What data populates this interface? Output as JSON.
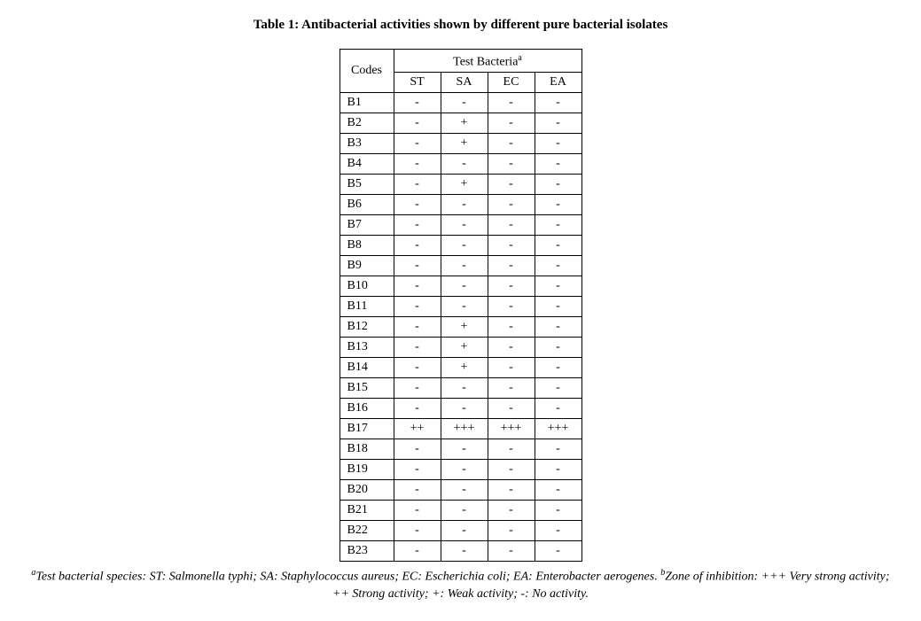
{
  "title": "Table 1: Antibacterial activities shown by different pure bacterial isolates",
  "table": {
    "codes_header": "Codes",
    "test_header": "Test Bacteria",
    "test_header_sup": "a",
    "columns": [
      "ST",
      "SA",
      "EC",
      "EA"
    ],
    "rows": [
      {
        "code": "B1",
        "values": [
          "-",
          "-",
          "-",
          "-"
        ]
      },
      {
        "code": "B2",
        "values": [
          "-",
          "+",
          "-",
          "-"
        ]
      },
      {
        "code": "B3",
        "values": [
          "-",
          "+",
          "-",
          "-"
        ]
      },
      {
        "code": "B4",
        "values": [
          "-",
          "-",
          "-",
          "-"
        ]
      },
      {
        "code": "B5",
        "values": [
          "-",
          "+",
          "-",
          "-"
        ]
      },
      {
        "code": "B6",
        "values": [
          "-",
          "-",
          "-",
          "-"
        ]
      },
      {
        "code": "B7",
        "values": [
          "-",
          "-",
          "-",
          "-"
        ]
      },
      {
        "code": "B8",
        "values": [
          "-",
          "-",
          "-",
          "-"
        ]
      },
      {
        "code": "B9",
        "values": [
          "-",
          "-",
          "-",
          "-"
        ]
      },
      {
        "code": "B10",
        "values": [
          "-",
          "-",
          "-",
          "-"
        ]
      },
      {
        "code": "B11",
        "values": [
          "-",
          "-",
          "-",
          "-"
        ]
      },
      {
        "code": "B12",
        "values": [
          "-",
          "+",
          "-",
          "-"
        ]
      },
      {
        "code": "B13",
        "values": [
          "-",
          "+",
          "-",
          "-"
        ]
      },
      {
        "code": "B14",
        "values": [
          "-",
          "+",
          "-",
          "-"
        ]
      },
      {
        "code": "B15",
        "values": [
          "-",
          "-",
          "-",
          "-"
        ]
      },
      {
        "code": "B16",
        "values": [
          "-",
          "-",
          "-",
          "-"
        ]
      },
      {
        "code": "B17",
        "values": [
          "++",
          "+++",
          "+++",
          "+++"
        ]
      },
      {
        "code": "B18",
        "values": [
          "-",
          "-",
          "-",
          "-"
        ]
      },
      {
        "code": "B19",
        "values": [
          "-",
          "-",
          "-",
          "-"
        ]
      },
      {
        "code": "B20",
        "values": [
          "-",
          "-",
          "-",
          "-"
        ]
      },
      {
        "code": "B21",
        "values": [
          "-",
          "-",
          "-",
          "-"
        ]
      },
      {
        "code": "B22",
        "values": [
          "-",
          "-",
          "-",
          "-"
        ]
      },
      {
        "code": "B23",
        "values": [
          "-",
          "-",
          "-",
          "-"
        ]
      }
    ],
    "border_color": "#000000",
    "font_size": 14
  },
  "footnote": {
    "sup_a": "a",
    "text_a": "Test bacterial species: ST: Salmonella typhi; SA: Staphylococcus aureus; EC: Escherichia coli; EA: Enterobacter aerogenes. ",
    "sup_b": "b",
    "text_b": "Zone of inhibition: +++ Very strong activity; ++ Strong activity; +: Weak activity; -: No activity."
  }
}
